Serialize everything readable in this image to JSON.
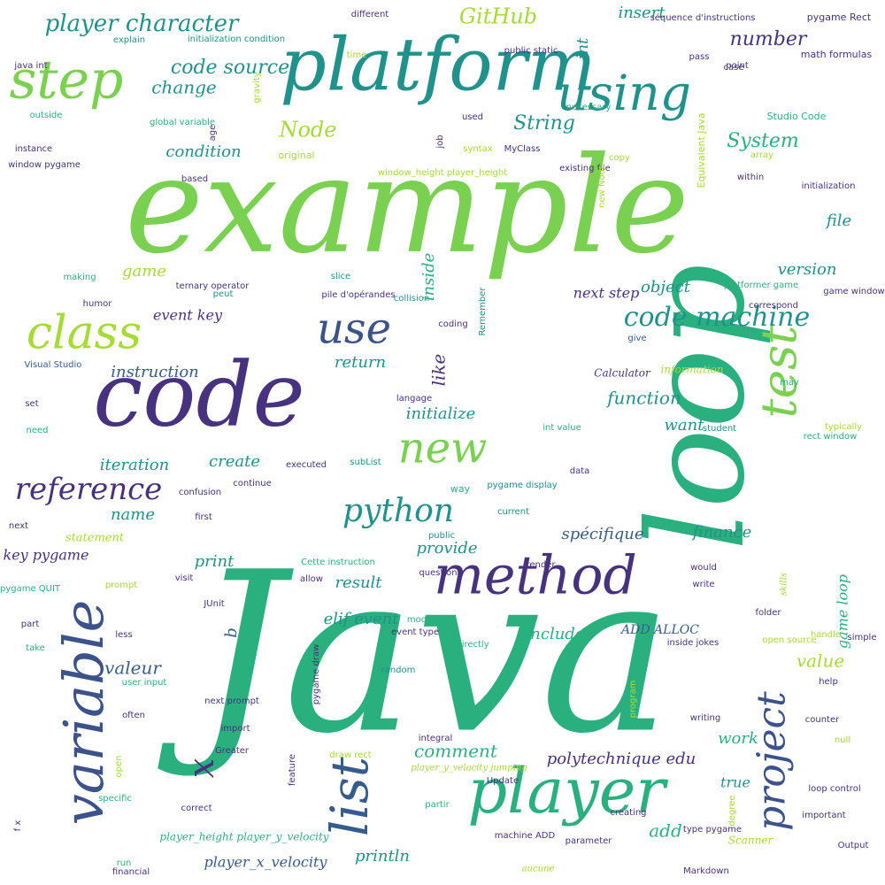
{
  "title": "",
  "palette": {
    "darkpurple": "#46327e",
    "indigo": "#3b528b",
    "steel": "#365c8d",
    "teal": "#21918c",
    "green": "#2ab07f",
    "lime": "#7ad151",
    "yellowgreen": "#a5db36",
    "yellow": "#d2e21b"
  },
  "words": [
    "Java",
    "example",
    "loop",
    "code",
    "platform",
    "player",
    "method",
    "variable",
    "list",
    "step",
    "using",
    "test",
    "class",
    "use",
    "new",
    "project",
    "reference",
    "python",
    "code machine",
    "player character",
    "GitHub",
    "code source",
    "change",
    "condition",
    "Node",
    "String",
    "System",
    "number",
    "insert",
    "int",
    "file",
    "version",
    "object",
    "next step",
    "event key",
    "instruction",
    "return",
    "like",
    "function",
    "want",
    "initialize",
    "iteration",
    "create",
    "name",
    "valeur",
    "print",
    "key pygame",
    "comment",
    "polytechnique edu",
    "spécifique",
    "finance",
    "provide",
    "result",
    "elif event",
    "include",
    "value",
    "game loop",
    "true",
    "work",
    "add",
    "println",
    "player_x_velocity",
    "x",
    "b",
    "ADD ALLOC",
    "séquence d'instructions",
    "pygame Rect",
    "math formulas",
    "Studio Code",
    "Equivalent Java",
    "initialization",
    "within",
    "existing file",
    "window_height player_height",
    "global variable",
    "initialization condition",
    "explain",
    "java int",
    "gravity",
    "outside",
    "instance",
    "window pygame",
    "age",
    "original",
    "MyClass",
    "syntax",
    "used",
    "job",
    "public static",
    "time",
    "point",
    "case",
    "pass",
    "array",
    "copy",
    "necessary",
    "based",
    "game",
    "making",
    "ternary operator",
    "pile d'opérandes",
    "collision",
    "humor",
    "inside",
    "Remember",
    "coding",
    "Visual Studio",
    "peut",
    "slice",
    "give",
    "platformer game",
    "correspond",
    "game window",
    "may",
    "information",
    "Calculator",
    "set",
    "langage",
    "need",
    "int value",
    "typically",
    "student",
    "rect window",
    "subList",
    "executed",
    "continue",
    "confusion",
    "data",
    "way",
    "pygame display",
    "next",
    "first",
    "current",
    "public",
    "statement",
    "Cette instruction",
    "render",
    "question",
    "pygame QUIT",
    "prompt",
    "visit",
    "allow",
    "would",
    "write",
    "skills",
    "JUnit",
    "modify",
    "folder",
    "part",
    "event type",
    "less",
    "directly",
    "random",
    "handle",
    "simple",
    "take",
    "open source",
    "inside jokes",
    "user input",
    "pygame draw",
    "program",
    "help",
    "writing",
    "next prompt",
    "often",
    "counter",
    "import",
    "Greater",
    "integral",
    "null",
    "draw rect",
    "open",
    "feature",
    "player_y_velocity jumping",
    "Update",
    "partir",
    "loop control",
    "creating",
    "degree",
    "specific",
    "correct",
    "important",
    "type pygame",
    "f x",
    "player_height player_y_velocity",
    "machine ADD",
    "parameter",
    "Scanner",
    "Output",
    "run",
    "financial",
    "aucune",
    "Markdown",
    "different",
    "new Node",
    "obj1"
  ]
}
